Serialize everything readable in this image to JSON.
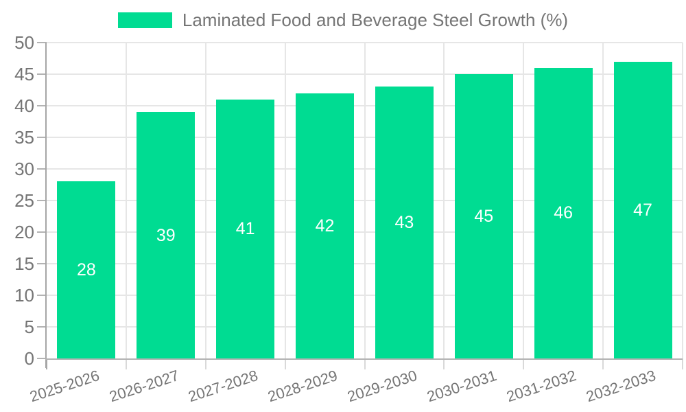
{
  "chart_data": {
    "type": "bar",
    "title": "Laminated Food and Beverage Steel Growth (%)",
    "categories": [
      "2025-2026",
      "2026-2027",
      "2027-2028",
      "2028-2029",
      "2029-2030",
      "2030-2031",
      "2031-2032",
      "2032-2033"
    ],
    "values": [
      28,
      39,
      41,
      42,
      43,
      45,
      46,
      47
    ],
    "bar_labels": [
      "28",
      "39",
      "41",
      "42",
      "43",
      "45",
      "46",
      "47"
    ],
    "xlabel": "",
    "ylabel": "",
    "ylim": [
      0,
      50
    ],
    "yticks": [
      0,
      5,
      10,
      15,
      20,
      25,
      30,
      35,
      40,
      45,
      50
    ],
    "ytick_labels": [
      "0",
      "5",
      "10",
      "15",
      "20",
      "25",
      "30",
      "35",
      "40",
      "45",
      "50"
    ],
    "grid": true,
    "legend_position": "top-center"
  },
  "legend": {
    "label": "Laminated Food and Beverage Steel Growth (%)"
  },
  "colors": {
    "bar": "#00dc92",
    "text": "#757575",
    "grid": "#e6e6e6",
    "axis_y": "#a6a6a6",
    "axis_x": "#b3b3b3",
    "value_label": "#ffffff",
    "background": "#ffffff"
  }
}
